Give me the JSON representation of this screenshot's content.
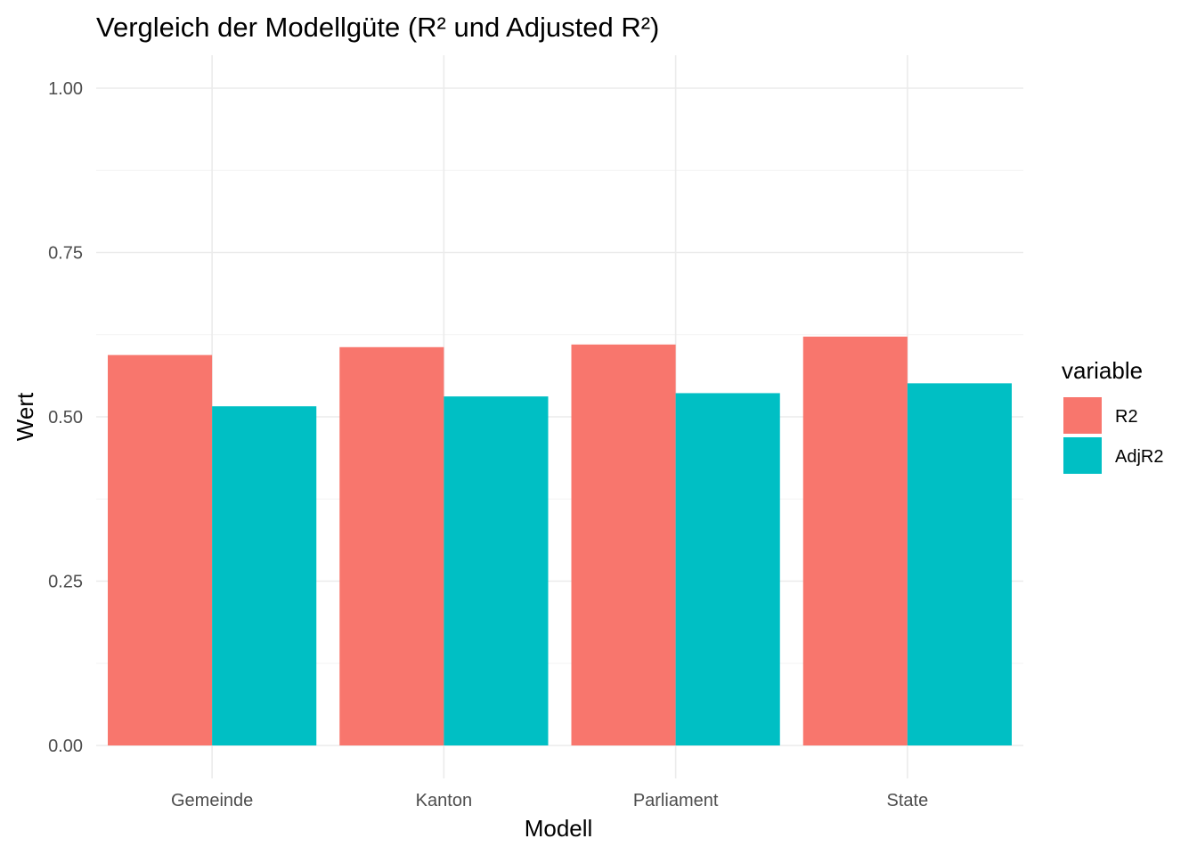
{
  "chart_data": {
    "type": "bar",
    "title": "Vergleich der Modellgüte (R² und Adjusted R²)",
    "xlabel": "Modell",
    "ylabel": "Wert",
    "categories": [
      "Gemeinde",
      "Kanton",
      "Parliament",
      "State"
    ],
    "series": [
      {
        "name": "R2",
        "color": "#F8766D",
        "values": [
          0.594,
          0.606,
          0.61,
          0.622
        ]
      },
      {
        "name": "AdjR2",
        "color": "#00BFC4",
        "values": [
          0.516,
          0.531,
          0.536,
          0.551
        ]
      }
    ],
    "ylim": [
      0,
      1.0
    ],
    "yticks": [
      "0.00",
      "0.25",
      "0.50",
      "0.75",
      "1.00"
    ],
    "grid": true,
    "legend": {
      "title": "variable",
      "position": "right"
    }
  }
}
